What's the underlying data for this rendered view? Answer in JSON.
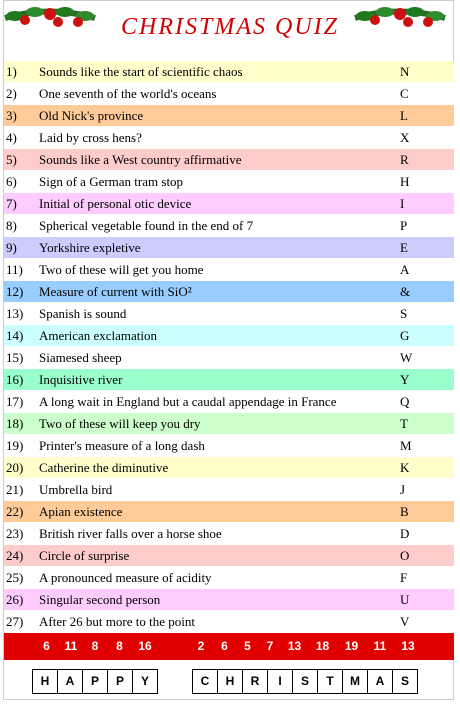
{
  "header": {
    "title": "CHRISTMAS QUIZ"
  },
  "questions": [
    {
      "number": "1)",
      "clue": "Sounds like the start of scientific chaos",
      "answer": "N",
      "color": "#ffffcc"
    },
    {
      "number": "2)",
      "clue": "One seventh of the world's oceans",
      "answer": "C",
      "color": "#ffffff"
    },
    {
      "number": "3)",
      "clue": "Old Nick's province",
      "answer": "L",
      "color": "#ffcc99"
    },
    {
      "number": "4)",
      "clue": "Laid by cross hens?",
      "answer": "X",
      "color": "#ffffff"
    },
    {
      "number": "5)",
      "clue": "Sounds like a West country affirmative",
      "answer": "R",
      "color": "#ffcccc"
    },
    {
      "number": "6)",
      "clue": "Sign of a German tram stop",
      "answer": "H",
      "color": "#ffffff"
    },
    {
      "number": "7)",
      "clue": "Initial of personal otic device",
      "answer": "I",
      "color": "#ffccff"
    },
    {
      "number": "8)",
      "clue": "Spherical vegetable found in the end of 7",
      "answer": "P",
      "color": "#ffffff"
    },
    {
      "number": "9)",
      "clue": "Yorkshire expletive",
      "answer": "E",
      "color": "#ccccff"
    },
    {
      "number": "11)",
      "clue": "Two of these will get you home",
      "answer": "A",
      "color": "#ffffff"
    },
    {
      "number": "12)",
      "clue": "Measure of current with SiO²",
      "answer": "&",
      "color": "#99ccff"
    },
    {
      "number": "13)",
      "clue": "Spanish is sound",
      "answer": "S",
      "color": "#ffffff"
    },
    {
      "number": "14)",
      "clue": "American exclamation",
      "answer": "G",
      "color": "#ccffff"
    },
    {
      "number": "15)",
      "clue": "Siamesed sheep",
      "answer": "W",
      "color": "#ffffff"
    },
    {
      "number": "16)",
      "clue": "Inquisitive river",
      "answer": "Y",
      "color": "#99ffcc"
    },
    {
      "number": "17)",
      "clue": "A long wait in England but a caudal appendage in France",
      "answer": "Q",
      "color": "#ffffff"
    },
    {
      "number": "18)",
      "clue": "Two of these will keep you dry",
      "answer": "T",
      "color": "#ccffcc"
    },
    {
      "number": "19)",
      "clue": "Printer's measure of a long dash",
      "answer": "M",
      "color": "#ffffff"
    },
    {
      "number": "20)",
      "clue": "Catherine the diminutive",
      "answer": "K",
      "color": "#ffffcc"
    },
    {
      "number": "21)",
      "clue": "Umbrella bird",
      "answer": "J",
      "color": "#ffffff"
    },
    {
      "number": "22)",
      "clue": "Apian existence",
      "answer": "B",
      "color": "#ffcc99"
    },
    {
      "number": "23)",
      "clue": "British river falls over a horse shoe",
      "answer": "D",
      "color": "#ffffff"
    },
    {
      "number": "24)",
      "clue": "Circle of surprise",
      "answer": "O",
      "color": "#ffcccc"
    },
    {
      "number": "25)",
      "clue": "A pronounced measure of acidity",
      "answer": "F",
      "color": "#ffffff"
    },
    {
      "number": "26)",
      "clue": "Singular second person",
      "answer": "U",
      "color": "#ffccff"
    },
    {
      "number": "27)",
      "clue": "After 26 but more to the point",
      "answer": "V",
      "color": "#ffffff"
    }
  ],
  "code": [
    [
      6,
      11,
      8,
      8,
      16
    ],
    [
      2,
      6,
      5,
      7,
      13,
      18,
      19,
      11,
      13
    ]
  ],
  "solution": [
    [
      "H",
      "A",
      "P",
      "P",
      "Y"
    ],
    [
      "C",
      "H",
      "R",
      "I",
      "S",
      "T",
      "M",
      "A",
      "S"
    ]
  ]
}
